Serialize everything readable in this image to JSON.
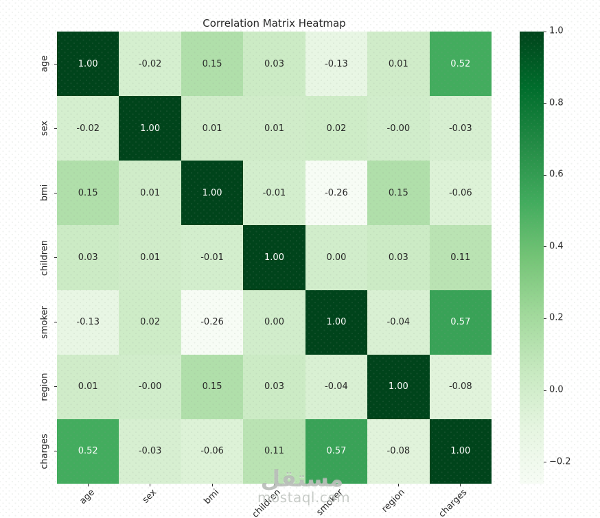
{
  "watermark": {
    "arabic": "مستقل",
    "domain": "mostaql.com"
  },
  "chart_data": {
    "type": "heatmap",
    "title": "Correlation Matrix Heatmap",
    "categories": [
      "age",
      "sex",
      "bmi",
      "children",
      "smoker",
      "region",
      "charges"
    ],
    "matrix": [
      [
        1.0,
        -0.02,
        0.15,
        0.03,
        -0.13,
        0.01,
        0.52
      ],
      [
        -0.02,
        1.0,
        0.01,
        0.01,
        0.02,
        -0.0,
        -0.03
      ],
      [
        0.15,
        0.01,
        1.0,
        -0.01,
        -0.26,
        0.15,
        -0.06
      ],
      [
        0.03,
        0.01,
        -0.01,
        1.0,
        0.0,
        0.03,
        0.11
      ],
      [
        -0.13,
        0.02,
        -0.26,
        0.0,
        1.0,
        -0.04,
        0.57
      ],
      [
        0.01,
        -0.0,
        0.15,
        0.03,
        -0.04,
        1.0,
        -0.08
      ],
      [
        0.52,
        -0.03,
        -0.06,
        0.11,
        0.57,
        -0.08,
        1.0
      ]
    ],
    "cell_labels": [
      [
        "1.00",
        "-0.02",
        "0.15",
        "0.03",
        "-0.13",
        "0.01",
        "0.52"
      ],
      [
        "-0.02",
        "1.00",
        "0.01",
        "0.01",
        "0.02",
        "-0.00",
        "-0.03"
      ],
      [
        "0.15",
        "0.01",
        "1.00",
        "-0.01",
        "-0.26",
        "0.15",
        "-0.06"
      ],
      [
        "0.03",
        "0.01",
        "-0.01",
        "1.00",
        "0.00",
        "0.03",
        "0.11"
      ],
      [
        "-0.13",
        "0.02",
        "-0.26",
        "0.00",
        "1.00",
        "-0.04",
        "0.57"
      ],
      [
        "0.01",
        "-0.00",
        "0.15",
        "0.03",
        "-0.04",
        "1.00",
        "-0.08"
      ],
      [
        "0.52",
        "-0.03",
        "-0.06",
        "0.11",
        "0.57",
        "-0.08",
        "1.00"
      ]
    ],
    "vmin": -0.26,
    "vmax": 1.0,
    "colormap": {
      "name": "Greens",
      "stops": [
        {
          "t": 0.0,
          "color": "#f7fcf5"
        },
        {
          "t": 0.125,
          "color": "#e5f5e0"
        },
        {
          "t": 0.25,
          "color": "#c7e9c0"
        },
        {
          "t": 0.375,
          "color": "#a1d99b"
        },
        {
          "t": 0.5,
          "color": "#74c476"
        },
        {
          "t": 0.625,
          "color": "#41ab5d"
        },
        {
          "t": 0.75,
          "color": "#238b45"
        },
        {
          "t": 0.875,
          "color": "#006d2c"
        },
        {
          "t": 1.0,
          "color": "#00441b"
        }
      ]
    },
    "annotation_colors": {
      "on_light": "#262626",
      "on_dark": "#ffffff"
    },
    "colorbar": {
      "tick_labels": [
        "1.0",
        "0.8",
        "0.6",
        "0.4",
        "0.2",
        "0.0",
        "−0.2"
      ],
      "tick_values": [
        1.0,
        0.8,
        0.6,
        0.4,
        0.2,
        0.0,
        -0.2
      ],
      "position": "right"
    },
    "legend_position": "right",
    "grid": false
  }
}
